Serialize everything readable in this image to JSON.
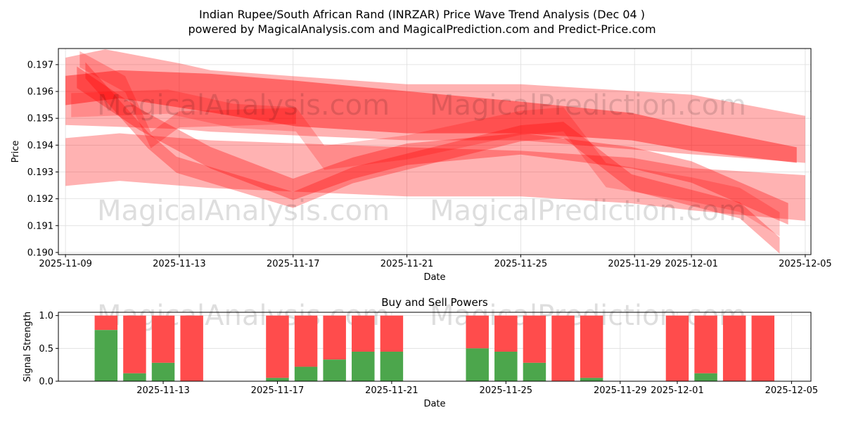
{
  "title_line1": "Indian Rupee/South African Rand (INRZAR) Price Wave Trend Analysis (Dec 04 )",
  "title_line2": "powered by MagicalAnalysis.com and MagicalPrediction.com and Predict-Price.com",
  "watermarks": [
    "MagicalAnalysis.com",
    "MagicalPrediction.com"
  ],
  "chart_data": [
    {
      "type": "area",
      "title": "",
      "xlabel": "Date",
      "ylabel": "Price",
      "x_origin": "2025-11-09",
      "x_unit": "days since 2025-11-09",
      "xlim": [
        -0.25,
        26.2
      ],
      "ylim": [
        0.18992,
        0.1976
      ],
      "grid": true,
      "xticks": [
        {
          "v": 0,
          "label": "2025-11-09"
        },
        {
          "v": 4,
          "label": "2025-11-13"
        },
        {
          "v": 8,
          "label": "2025-11-17"
        },
        {
          "v": 12,
          "label": "2025-11-21"
        },
        {
          "v": 16,
          "label": "2025-11-25"
        },
        {
          "v": 20,
          "label": "2025-11-29"
        },
        {
          "v": 22,
          "label": "2025-12-01"
        },
        {
          "v": 26,
          "label": "2025-12-05"
        }
      ],
      "yticks": [
        {
          "v": 0.19,
          "label": "0.190"
        },
        {
          "v": 0.191,
          "label": "0.191"
        },
        {
          "v": 0.192,
          "label": "0.192"
        },
        {
          "v": 0.193,
          "label": "0.193"
        },
        {
          "v": 0.194,
          "label": "0.194"
        },
        {
          "v": 0.195,
          "label": "0.195"
        },
        {
          "v": 0.196,
          "label": "0.196"
        },
        {
          "v": 0.197,
          "label": "0.197"
        }
      ],
      "color": "#ff0000",
      "bands": [
        {
          "name": "wave-1",
          "points": [
            [
              0,
              0.19475,
              0.19726
            ],
            [
              1.4,
              0.1947,
              0.19757
            ],
            [
              4,
              0.1946,
              0.19705
            ],
            [
              5.1,
              0.1945,
              0.19679
            ],
            [
              12,
              0.19418,
              0.19627
            ],
            [
              16,
              0.19418,
              0.19627
            ],
            [
              22,
              0.19366,
              0.19588
            ],
            [
              26,
              0.19334,
              0.19509
            ]
          ]
        },
        {
          "name": "wave-2",
          "points": [
            [
              0,
              0.19549,
              0.19658
            ],
            [
              1.9,
              0.19575,
              0.19679
            ],
            [
              5.1,
              0.19522,
              0.19666
            ],
            [
              8.1,
              0.1947,
              0.1964
            ],
            [
              12,
              0.19444,
              0.19601
            ],
            [
              16,
              0.19444,
              0.19562
            ],
            [
              19.9,
              0.19418,
              0.1952
            ],
            [
              22,
              0.19379,
              0.1947
            ],
            [
              25.7,
              0.19334,
              0.19392
            ]
          ]
        },
        {
          "name": "wave-3",
          "points": [
            [
              0,
              0.19248,
              0.19426
            ],
            [
              1.9,
              0.19267,
              0.19444
            ],
            [
              5.1,
              0.1924,
              0.19418
            ],
            [
              12,
              0.19209,
              0.19392
            ],
            [
              16,
              0.19209,
              0.19379
            ],
            [
              19.9,
              0.19183,
              0.19353
            ],
            [
              22,
              0.19157,
              0.19314
            ],
            [
              26,
              0.19118,
              0.19288
            ]
          ]
        },
        {
          "name": "wave-4",
          "points": [
            [
              0.4,
              0.19613,
              0.19693
            ],
            [
              2.6,
              0.19456,
              0.19536
            ],
            [
              5.1,
              0.19313,
              0.19393
            ],
            [
              8,
              0.19195,
              0.19275
            ],
            [
              10.1,
              0.19274,
              0.19354
            ],
            [
              12,
              0.19326,
              0.19406
            ],
            [
              16,
              0.19365,
              0.19445
            ],
            [
              19.9,
              0.19313,
              0.19393
            ],
            [
              22,
              0.1926,
              0.1934
            ],
            [
              25.4,
              0.19104,
              0.19184
            ]
          ]
        },
        {
          "name": "wave-5",
          "points": [
            [
              0.7,
              0.19649,
              0.19709
            ],
            [
              2.9,
              0.19388,
              0.19448
            ],
            [
              3.9,
              0.19297,
              0.19357
            ],
            [
              8,
              0.19166,
              0.19226
            ],
            [
              10.1,
              0.19258,
              0.19318
            ],
            [
              16,
              0.19414,
              0.19474
            ],
            [
              17.5,
              0.19427,
              0.19487
            ],
            [
              19.9,
              0.19231,
              0.19291
            ],
            [
              23.7,
              0.19127,
              0.19187
            ],
            [
              25.1,
              0.18996,
              0.19056
            ]
          ]
        },
        {
          "name": "wave-6",
          "points": [
            [
              0.2,
              0.19504,
              0.19594
            ],
            [
              3.6,
              0.19517,
              0.19607
            ],
            [
              5.9,
              0.19464,
              0.19554
            ],
            [
              8.1,
              0.19451,
              0.19541
            ],
            [
              9.1,
              0.19308,
              0.19398
            ],
            [
              12,
              0.19347,
              0.19437
            ],
            [
              16,
              0.19438,
              0.19528
            ],
            [
              17.5,
              0.19451,
              0.19541
            ],
            [
              19,
              0.19243,
              0.19333
            ],
            [
              22,
              0.1919,
              0.1928
            ],
            [
              23.7,
              0.19151,
              0.19241
            ],
            [
              25.1,
              0.1906,
              0.1915
            ]
          ]
        },
        {
          "name": "wave-7",
          "points": [
            [
              0.5,
              0.1969,
              0.1975
            ],
            [
              2.1,
              0.19597,
              0.19657
            ],
            [
              3,
              0.19388,
              0.19448
            ],
            [
              4,
              0.19466,
              0.19526
            ],
            [
              8.1,
              0.19479,
              0.19539
            ]
          ]
        }
      ]
    },
    {
      "type": "bar",
      "title": "Buy and Sell Powers",
      "xlabel": "Date",
      "ylabel": "Signal Strength",
      "x_origin": "2025-11-09",
      "xlim": [
        0.33,
        26.68
      ],
      "ylim": [
        0,
        1.05
      ],
      "grid": true,
      "xticks": [
        {
          "v": 4,
          "label": "2025-11-13"
        },
        {
          "v": 8,
          "label": "2025-11-17"
        },
        {
          "v": 12,
          "label": "2025-11-21"
        },
        {
          "v": 16,
          "label": "2025-11-25"
        },
        {
          "v": 20,
          "label": "2025-11-29"
        },
        {
          "v": 22,
          "label": "2025-12-01"
        },
        {
          "v": 26,
          "label": "2025-12-05"
        }
      ],
      "yticks": [
        {
          "v": 0,
          "label": "0.0"
        },
        {
          "v": 0.5,
          "label": "0.5"
        },
        {
          "v": 1,
          "label": "1.0"
        }
      ],
      "buy_color": "#4ca64c",
      "sell_color": "#ff4c4c",
      "days": [
        2,
        3,
        4,
        5,
        8,
        9,
        10,
        11,
        12,
        15,
        16,
        17,
        18,
        19,
        22,
        23,
        24,
        25
      ],
      "buy": [
        0.78,
        0.12,
        0.28,
        0,
        0.05,
        0.22,
        0.33,
        0.45,
        0.45,
        0.5,
        0.45,
        0.28,
        0,
        0.05,
        0,
        0.12,
        0,
        0
      ],
      "sell_total": 1.0
    }
  ]
}
